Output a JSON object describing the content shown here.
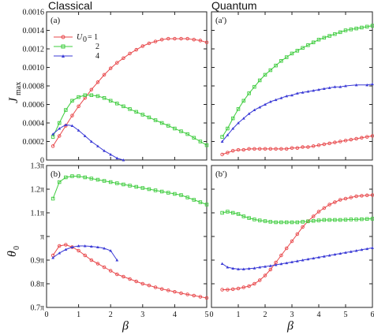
{
  "titles": {
    "left": "Classical",
    "right": "Quantum"
  },
  "axis_labels": {
    "x": "β",
    "y_top": "J",
    "y_top_sub": "max",
    "y_bottom": "θ",
    "y_bottom_sub": "0"
  },
  "legend": {
    "prefix_label": "U",
    "prefix_sub": "0",
    "entries": [
      "= 1",
      "2",
      "4"
    ]
  },
  "colors": {
    "U1": "#e8474a",
    "U2": "#3ecc3e",
    "U4": "#3b3bd6"
  },
  "chart_data": [
    {
      "panel": "(a)",
      "type": "line",
      "xlabel": "",
      "ylabel": "J_max",
      "xlim": [
        0,
        5
      ],
      "ylim": [
        0,
        0.0016
      ],
      "xticks": [
        0,
        1,
        2,
        3,
        4,
        5
      ],
      "yticks": [
        0,
        0.0002,
        0.0004,
        0.0006,
        0.0008,
        0.001,
        0.0012,
        0.0014,
        0.0016
      ],
      "ytick_labels": [
        "0",
        "0.0002",
        "0.0004",
        "0.0006",
        "0.0008",
        "0.0010",
        "0.0012",
        "0.0014",
        "0.0016"
      ],
      "series": [
        {
          "name": "U0 = 1",
          "x": [
            0.2,
            0.4,
            0.6,
            0.8,
            1.0,
            1.2,
            1.4,
            1.6,
            1.8,
            2.0,
            2.2,
            2.4,
            2.6,
            2.8,
            3.0,
            3.2,
            3.4,
            3.6,
            3.8,
            4.0,
            4.2,
            4.4,
            4.6,
            4.8,
            5.0
          ],
          "y": [
            0.00015,
            0.00026,
            0.00037,
            0.00048,
            0.00058,
            0.00067,
            0.00076,
            0.00084,
            0.00092,
            0.00099,
            0.00105,
            0.0011,
            0.00115,
            0.00119,
            0.00123,
            0.00126,
            0.00128,
            0.0013,
            0.00131,
            0.00131,
            0.00131,
            0.00131,
            0.0013,
            0.00129,
            0.00127
          ]
        },
        {
          "name": "U0 = 2",
          "x": [
            0.2,
            0.4,
            0.6,
            0.8,
            1.0,
            1.2,
            1.4,
            1.6,
            1.8,
            2.0,
            2.2,
            2.4,
            2.6,
            2.8,
            3.0,
            3.2,
            3.4,
            3.6,
            3.8,
            4.0,
            4.2,
            4.4,
            4.6,
            4.8,
            5.0
          ],
          "y": [
            0.00025,
            0.0004,
            0.00054,
            0.00064,
            0.00068,
            0.0007,
            0.0007,
            0.00069,
            0.00067,
            0.00064,
            0.00061,
            0.00058,
            0.00055,
            0.00052,
            0.00049,
            0.00046,
            0.00043,
            0.0004,
            0.00037,
            0.00034,
            0.00031,
            0.00028,
            0.00024,
            0.0002,
            0.00016
          ]
        },
        {
          "name": "U0 = 4",
          "x": [
            0.2,
            0.4,
            0.6,
            0.8,
            1.0,
            1.2,
            1.4,
            1.6,
            1.8,
            2.0,
            2.2,
            2.4
          ],
          "y": [
            0.00028,
            0.00034,
            0.00038,
            0.00037,
            0.00032,
            0.00026,
            0.0002,
            0.00015,
            0.0001,
            6e-05,
            2e-05,
            0.0
          ]
        }
      ]
    },
    {
      "panel": "(a')",
      "type": "line",
      "xlabel": "",
      "ylabel": "",
      "xlim": [
        0,
        6
      ],
      "ylim": [
        0,
        0.0016
      ],
      "xticks": [
        0,
        1,
        2,
        3,
        4,
        5,
        6
      ],
      "series": [
        {
          "name": "U0 = 1",
          "x": [
            0.4,
            0.6,
            0.8,
            1.0,
            1.2,
            1.4,
            1.6,
            1.8,
            2.0,
            2.2,
            2.4,
            2.6,
            2.8,
            3.0,
            3.2,
            3.4,
            3.6,
            3.8,
            4.0,
            4.2,
            4.4,
            4.6,
            4.8,
            5.0,
            5.2,
            5.4,
            5.6,
            5.8,
            6.0
          ],
          "y": [
            6e-05,
            8e-05,
            0.0001,
            0.00011,
            0.00011,
            0.00012,
            0.00012,
            0.00012,
            0.00012,
            0.00012,
            0.00012,
            0.00012,
            0.00012,
            0.00013,
            0.00013,
            0.00014,
            0.00014,
            0.00015,
            0.00016,
            0.00017,
            0.00018,
            0.00019,
            0.0002,
            0.00021,
            0.00022,
            0.00023,
            0.00024,
            0.00025,
            0.00026
          ]
        },
        {
          "name": "U0 = 2",
          "x": [
            0.4,
            0.6,
            0.8,
            1.0,
            1.2,
            1.4,
            1.6,
            1.8,
            2.0,
            2.2,
            2.4,
            2.6,
            2.8,
            3.0,
            3.2,
            3.4,
            3.6,
            3.8,
            4.0,
            4.2,
            4.4,
            4.6,
            4.8,
            5.0,
            5.2,
            5.4,
            5.6,
            5.8,
            6.0
          ],
          "y": [
            0.00025,
            0.00034,
            0.00045,
            0.00055,
            0.00064,
            0.00072,
            0.00079,
            0.00086,
            0.00092,
            0.00097,
            0.00102,
            0.00107,
            0.00111,
            0.00115,
            0.00118,
            0.00121,
            0.00124,
            0.00127,
            0.0013,
            0.00132,
            0.00134,
            0.00136,
            0.00138,
            0.0014,
            0.00141,
            0.00142,
            0.00143,
            0.00144,
            0.00145
          ]
        },
        {
          "name": "U0 = 4",
          "x": [
            0.4,
            0.6,
            0.8,
            1.0,
            1.2,
            1.4,
            1.6,
            1.8,
            2.0,
            2.2,
            2.4,
            2.6,
            2.8,
            3.0,
            3.2,
            3.4,
            3.6,
            3.8,
            4.0,
            4.2,
            4.4,
            4.6,
            4.8,
            5.0,
            5.4,
            5.8,
            6.0
          ],
          "y": [
            0.0002,
            0.00027,
            0.00034,
            0.0004,
            0.00045,
            0.0005,
            0.00054,
            0.00057,
            0.0006,
            0.00063,
            0.00065,
            0.00067,
            0.00069,
            0.0007,
            0.00072,
            0.00073,
            0.00074,
            0.00075,
            0.00076,
            0.00077,
            0.00078,
            0.00079,
            0.00079,
            0.0008,
            0.00081,
            0.00081,
            0.00082
          ]
        }
      ]
    },
    {
      "panel": "(b)",
      "type": "line",
      "xlabel": "β",
      "ylabel": "θ0",
      "xlim": [
        0,
        5
      ],
      "ylim": [
        0.7,
        1.3
      ],
      "xticks": [
        0,
        1,
        2,
        3,
        4,
        5
      ],
      "yticks": [
        0.7,
        0.8,
        0.9,
        1.0,
        1.1,
        1.2,
        1.3
      ],
      "ytick_labels": [
        "0.7π",
        "0.8π",
        "0.9π",
        "π",
        "1.1π",
        "1.2π",
        "1.3π"
      ],
      "series": [
        {
          "name": "U0 = 1",
          "x": [
            0.2,
            0.4,
            0.6,
            0.8,
            1.0,
            1.2,
            1.4,
            1.6,
            1.8,
            2.0,
            2.2,
            2.4,
            2.6,
            2.8,
            3.0,
            3.2,
            3.4,
            3.6,
            3.8,
            4.0,
            4.2,
            4.4,
            4.6,
            4.8,
            5.0
          ],
          "y": [
            0.92,
            0.96,
            0.965,
            0.955,
            0.94,
            0.92,
            0.9,
            0.885,
            0.87,
            0.855,
            0.84,
            0.83,
            0.82,
            0.81,
            0.8,
            0.793,
            0.785,
            0.778,
            0.772,
            0.766,
            0.76,
            0.755,
            0.75,
            0.745,
            0.74
          ]
        },
        {
          "name": "U0 = 2",
          "x": [
            0.2,
            0.4,
            0.6,
            0.8,
            1.0,
            1.2,
            1.4,
            1.6,
            1.8,
            2.0,
            2.2,
            2.4,
            2.6,
            2.8,
            3.0,
            3.2,
            3.4,
            3.6,
            3.8,
            4.0,
            4.2,
            4.4,
            4.6,
            4.8,
            5.0
          ],
          "y": [
            1.16,
            1.23,
            1.25,
            1.255,
            1.255,
            1.25,
            1.245,
            1.24,
            1.235,
            1.23,
            1.225,
            1.22,
            1.215,
            1.21,
            1.205,
            1.2,
            1.195,
            1.19,
            1.185,
            1.18,
            1.175,
            1.165,
            1.155,
            1.145,
            1.135
          ]
        },
        {
          "name": "U0 = 4",
          "x": [
            0.2,
            0.4,
            0.6,
            0.8,
            1.0,
            1.2,
            1.4,
            1.6,
            1.8,
            2.0,
            2.2
          ],
          "y": [
            0.91,
            0.93,
            0.945,
            0.955,
            0.96,
            0.96,
            0.958,
            0.955,
            0.95,
            0.94,
            0.9
          ]
        }
      ]
    },
    {
      "panel": "(b')",
      "type": "line",
      "xlabel": "β",
      "ylabel": "",
      "xlim": [
        0,
        6
      ],
      "ylim": [
        0.7,
        1.3
      ],
      "xticks": [
        0,
        1,
        2,
        3,
        4,
        5,
        6
      ],
      "series": [
        {
          "name": "U0 = 1",
          "x": [
            0.4,
            0.6,
            0.8,
            1.0,
            1.2,
            1.4,
            1.6,
            1.8,
            2.0,
            2.2,
            2.4,
            2.6,
            2.8,
            3.0,
            3.2,
            3.4,
            3.6,
            3.8,
            4.0,
            4.2,
            4.4,
            4.6,
            4.8,
            5.0,
            5.2,
            5.4,
            5.6,
            5.8,
            6.0
          ],
          "y": [
            0.775,
            0.775,
            0.777,
            0.78,
            0.785,
            0.79,
            0.8,
            0.815,
            0.835,
            0.86,
            0.89,
            0.92,
            0.95,
            0.98,
            1.01,
            1.04,
            1.065,
            1.085,
            1.105,
            1.12,
            1.135,
            1.145,
            1.155,
            1.16,
            1.165,
            1.17,
            1.172,
            1.174,
            1.175
          ]
        },
        {
          "name": "U0 = 2",
          "x": [
            0.4,
            0.6,
            0.8,
            1.0,
            1.2,
            1.4,
            1.6,
            1.8,
            2.0,
            2.2,
            2.4,
            2.6,
            2.8,
            3.0,
            3.2,
            3.4,
            3.6,
            3.8,
            4.0,
            4.2,
            4.4,
            4.6,
            4.8,
            5.0,
            5.2,
            5.4,
            5.6,
            5.8,
            6.0
          ],
          "y": [
            1.1,
            1.105,
            1.1,
            1.095,
            1.085,
            1.078,
            1.072,
            1.068,
            1.065,
            1.062,
            1.06,
            1.06,
            1.06,
            1.06,
            1.06,
            1.062,
            1.064,
            1.066,
            1.068,
            1.07,
            1.07,
            1.07,
            1.07,
            1.071,
            1.072,
            1.072,
            1.073,
            1.074,
            1.075
          ]
        },
        {
          "name": "U0 = 4",
          "x": [
            0.4,
            0.6,
            0.8,
            1.0,
            1.2,
            1.4,
            1.6,
            1.8,
            2.0,
            2.2,
            2.4,
            2.6,
            2.8,
            3.0,
            3.2,
            3.4,
            3.6,
            3.8,
            4.0,
            4.2,
            4.4,
            4.6,
            4.8,
            5.0,
            5.2,
            5.4,
            5.6,
            5.8,
            6.0
          ],
          "y": [
            0.885,
            0.87,
            0.865,
            0.862,
            0.862,
            0.864,
            0.866,
            0.87,
            0.873,
            0.876,
            0.88,
            0.884,
            0.888,
            0.892,
            0.896,
            0.9,
            0.904,
            0.908,
            0.912,
            0.916,
            0.92,
            0.924,
            0.928,
            0.932,
            0.936,
            0.94,
            0.944,
            0.948,
            0.952
          ]
        }
      ]
    }
  ]
}
